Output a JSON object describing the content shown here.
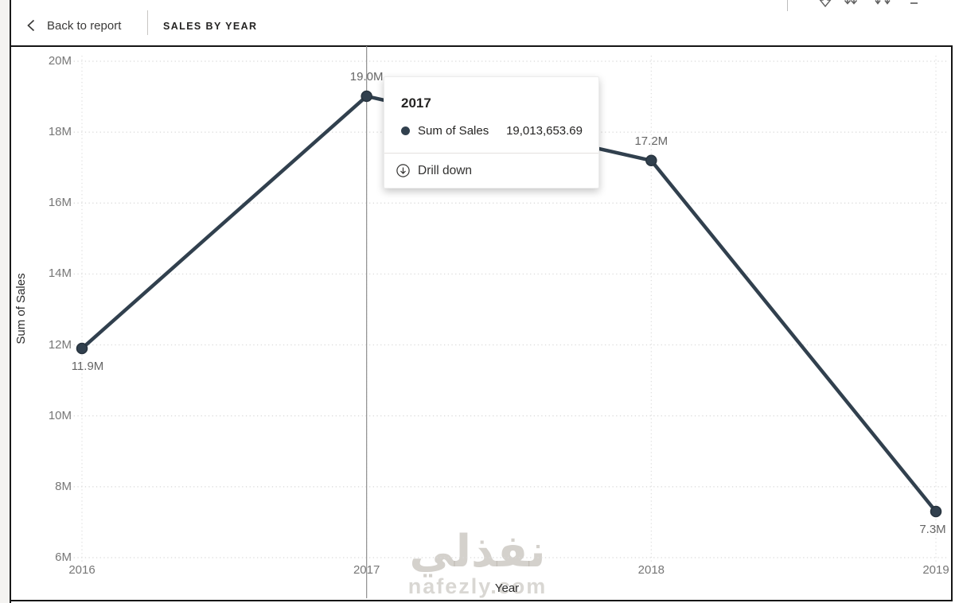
{
  "toolbar": {
    "back_label": "Back to report",
    "title": "SALES BY YEAR"
  },
  "icons": {
    "back_chevron": "chevron-left",
    "drill_toggle": "drill-down-arrow",
    "next_level": "double-down-arrows",
    "expand_all": "forked-down-arrows",
    "tooltip_action": "circled-down-arrow"
  },
  "tooltip": {
    "title": "2017",
    "series_label": "Sum of Sales",
    "value": "19,013,653.69",
    "action_label": "Drill down"
  },
  "watermark": {
    "arabic": "نفذلي",
    "latin": "nafezly.com"
  },
  "chart_data": {
    "type": "line",
    "title": "SALES BY YEAR",
    "xlabel": "Year",
    "ylabel": "Sum of Sales",
    "x": [
      "2016",
      "2017",
      "2018",
      "2019"
    ],
    "series": [
      {
        "name": "Sum of Sales",
        "values_millions": [
          11.9,
          19.01365369,
          17.2,
          7.3
        ],
        "point_labels": [
          "11.9M",
          "19.0M",
          "17.2M",
          "7.3M"
        ],
        "label_placement": [
          "below",
          "above",
          "above",
          "below"
        ]
      }
    ],
    "hovered_point": {
      "x": "2017",
      "value_exact": "19,013,653.69"
    },
    "y_ticks": [
      20,
      18,
      16,
      14,
      12,
      10,
      8,
      6
    ],
    "y_tick_labels": [
      "20M",
      "18M",
      "16M",
      "14M",
      "12M",
      "10M",
      "8M",
      "6M"
    ],
    "ylim": [
      6,
      20
    ],
    "grid": true,
    "legend": "none",
    "line_color": "#31404E",
    "point_color": "#31404E"
  }
}
